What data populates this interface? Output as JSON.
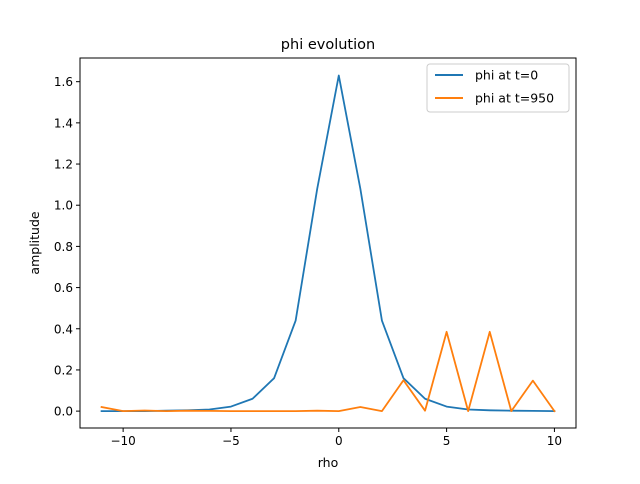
{
  "chart_data": {
    "type": "line",
    "title": "phi evolution",
    "xlabel": "rho",
    "ylabel": "amplitude",
    "xlim": [
      -12,
      11
    ],
    "ylim": [
      -0.082,
      1.715
    ],
    "x_ticks": [
      -10,
      -5,
      0,
      5,
      10
    ],
    "y_ticks": [
      0.0,
      0.2,
      0.4,
      0.6,
      0.8,
      1.0,
      1.2,
      1.4,
      1.6
    ],
    "x_tick_labels": [
      "−10",
      "−5",
      "0",
      "5",
      "10"
    ],
    "y_tick_labels": [
      "0.0",
      "0.2",
      "0.4",
      "0.6",
      "0.8",
      "1.0",
      "1.2",
      "1.4",
      "1.6"
    ],
    "grid": false,
    "legend_position": "top-right",
    "series": [
      {
        "name": "phi at t=0",
        "color": "#1f77b4",
        "x": [
          -11,
          -10,
          -9,
          -8,
          -7,
          -6,
          -5,
          -4,
          -3,
          -2,
          -1,
          0,
          1,
          2,
          3,
          4,
          5,
          6,
          7,
          8,
          9,
          10
        ],
        "y": [
          0.0,
          0.0,
          0.0,
          0.002,
          0.004,
          0.008,
          0.022,
          0.06,
          0.16,
          0.44,
          1.08,
          1.63,
          1.08,
          0.44,
          0.16,
          0.06,
          0.022,
          0.008,
          0.004,
          0.002,
          0.001,
          0.0
        ]
      },
      {
        "name": "phi at t=950",
        "color": "#ff7f0e",
        "x": [
          -11,
          -10,
          -9,
          -8,
          -7,
          -6,
          -5,
          -4,
          -3,
          -2,
          -1,
          0,
          1,
          2,
          3,
          4,
          5,
          6,
          7,
          8,
          9,
          10
        ],
        "y": [
          0.02,
          0.0,
          0.003,
          0.0,
          0.002,
          0.001,
          0.0,
          0.0,
          0.0,
          0.0,
          0.002,
          0.0,
          0.02,
          0.0,
          0.15,
          0.002,
          0.385,
          0.0,
          0.385,
          0.0,
          0.148,
          0.0
        ]
      }
    ]
  }
}
